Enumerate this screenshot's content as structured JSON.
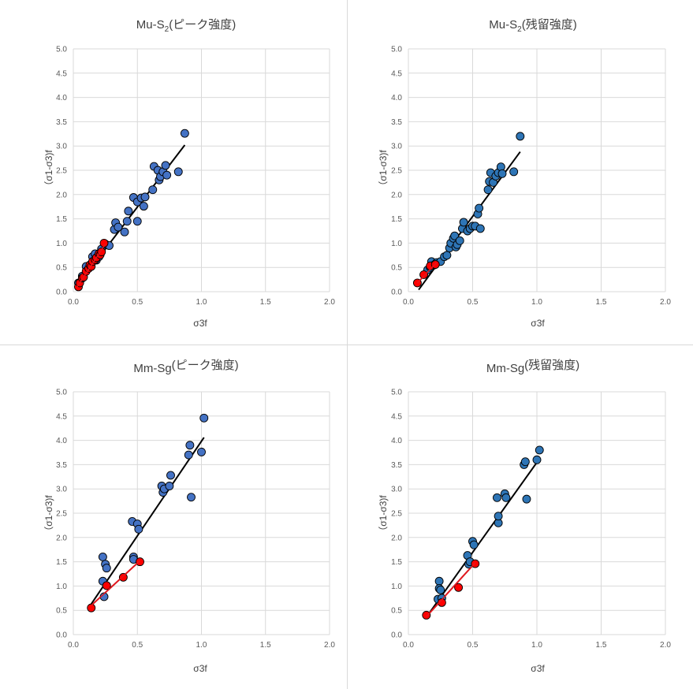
{
  "colors": {
    "primary_points": "#4472c4",
    "residual_points": "#2e75b6",
    "highlight_points": "#ff0000",
    "trend_line": "#000000",
    "highlight_line": "#e0191f",
    "gridline": "#d9d9d9"
  },
  "chart_data": [
    {
      "type": "scatter",
      "title": "Mu-S2(ピーク強度)",
      "title_main": "Mu-S",
      "title_sub": "2",
      "title_tail": "(ピーク強度)",
      "xlabel": "σ3f",
      "ylabel": "（σ1-σ3)f",
      "xlim": [
        0,
        2.0
      ],
      "ylim": [
        0,
        5.0
      ],
      "xticks": [
        "0.0",
        "0.5",
        "1.0",
        "1.5",
        "2.0"
      ],
      "yticks": [
        "0.0",
        "0.5",
        "1.0",
        "1.5",
        "2.0",
        "2.5",
        "3.0",
        "3.5",
        "4.0",
        "4.5",
        "5.0"
      ],
      "grid": true,
      "series": [
        {
          "color": "#4472c4",
          "points": [
            [
              0.04,
              0.18
            ],
            [
              0.07,
              0.32
            ],
            [
              0.1,
              0.52
            ],
            [
              0.13,
              0.55
            ],
            [
              0.15,
              0.72
            ],
            [
              0.17,
              0.78
            ],
            [
              0.18,
              0.65
            ],
            [
              0.2,
              0.72
            ],
            [
              0.22,
              0.88
            ],
            [
              0.25,
              0.98
            ],
            [
              0.28,
              0.95
            ],
            [
              0.32,
              1.28
            ],
            [
              0.33,
              1.42
            ],
            [
              0.35,
              1.33
            ],
            [
              0.4,
              1.23
            ],
            [
              0.42,
              1.45
            ],
            [
              0.43,
              1.66
            ],
            [
              0.47,
              1.94
            ],
            [
              0.5,
              1.45
            ],
            [
              0.5,
              1.85
            ],
            [
              0.53,
              1.93
            ],
            [
              0.55,
              1.76
            ],
            [
              0.56,
              1.95
            ],
            [
              0.62,
              2.1
            ],
            [
              0.63,
              2.58
            ],
            [
              0.66,
              2.5
            ],
            [
              0.67,
              2.3
            ],
            [
              0.68,
              2.37
            ],
            [
              0.7,
              2.47
            ],
            [
              0.72,
              2.6
            ],
            [
              0.73,
              2.4
            ],
            [
              0.82,
              2.47
            ],
            [
              0.87,
              3.26
            ]
          ]
        },
        {
          "color": "#ff0000",
          "points": [
            [
              0.04,
              0.1
            ],
            [
              0.05,
              0.18
            ],
            [
              0.07,
              0.28
            ],
            [
              0.08,
              0.3
            ],
            [
              0.1,
              0.42
            ],
            [
              0.12,
              0.48
            ],
            [
              0.13,
              0.55
            ],
            [
              0.14,
              0.52
            ],
            [
              0.15,
              0.62
            ],
            [
              0.17,
              0.66
            ],
            [
              0.18,
              0.7
            ],
            [
              0.2,
              0.78
            ],
            [
              0.21,
              0.76
            ],
            [
              0.22,
              0.82
            ],
            [
              0.24,
              1.0
            ]
          ]
        }
      ],
      "trendlines": [
        {
          "color": "#000000",
          "from": [
            0.03,
            0.12
          ],
          "to": [
            0.87,
            3.02
          ]
        },
        {
          "color": "#e0191f",
          "from": [
            0.03,
            0.1
          ],
          "to": [
            0.25,
            0.98
          ]
        }
      ]
    },
    {
      "type": "scatter",
      "title": "Mu-S2(残留強度)",
      "title_main": "Mu-S",
      "title_sub": "2",
      "title_tail": "(残留強度)",
      "xlabel": "σ3f",
      "ylabel": "（σ1-σ3)f",
      "xlim": [
        0,
        2.0
      ],
      "ylim": [
        0,
        5.0
      ],
      "xticks": [
        "0.0",
        "0.5",
        "1.0",
        "1.5",
        "2.0"
      ],
      "yticks": [
        "0.0",
        "0.5",
        "1.0",
        "1.5",
        "2.0",
        "2.5",
        "3.0",
        "3.5",
        "4.0",
        "4.5",
        "5.0"
      ],
      "grid": true,
      "series": [
        {
          "color": "#2e75b6",
          "points": [
            [
              0.15,
              0.45
            ],
            [
              0.17,
              0.5
            ],
            [
              0.18,
              0.62
            ],
            [
              0.2,
              0.55
            ],
            [
              0.22,
              0.6
            ],
            [
              0.25,
              0.62
            ],
            [
              0.28,
              0.72
            ],
            [
              0.3,
              0.75
            ],
            [
              0.32,
              0.9
            ],
            [
              0.33,
              1.0
            ],
            [
              0.35,
              1.1
            ],
            [
              0.36,
              1.15
            ],
            [
              0.37,
              0.92
            ],
            [
              0.38,
              0.97
            ],
            [
              0.4,
              1.05
            ],
            [
              0.42,
              1.3
            ],
            [
              0.43,
              1.43
            ],
            [
              0.46,
              1.25
            ],
            [
              0.48,
              1.3
            ],
            [
              0.5,
              1.35
            ],
            [
              0.52,
              1.35
            ],
            [
              0.54,
              1.6
            ],
            [
              0.55,
              1.72
            ],
            [
              0.56,
              1.3
            ],
            [
              0.62,
              2.1
            ],
            [
              0.63,
              2.27
            ],
            [
              0.64,
              2.45
            ],
            [
              0.66,
              2.25
            ],
            [
              0.68,
              2.38
            ],
            [
              0.7,
              2.45
            ],
            [
              0.72,
              2.57
            ],
            [
              0.73,
              2.43
            ],
            [
              0.82,
              2.47
            ],
            [
              0.87,
              3.2
            ]
          ]
        },
        {
          "color": "#ff0000",
          "points": [
            [
              0.07,
              0.18
            ],
            [
              0.12,
              0.35
            ],
            [
              0.17,
              0.53
            ],
            [
              0.21,
              0.56
            ]
          ]
        }
      ],
      "trendlines": [
        {
          "color": "#000000",
          "from": [
            0.08,
            0.04
          ],
          "to": [
            0.87,
            2.88
          ]
        },
        {
          "color": "#e0191f",
          "from": [
            0.07,
            0.18
          ],
          "to": [
            0.22,
            0.6
          ]
        }
      ]
    },
    {
      "type": "scatter",
      "title": "Mm-Sg(ピーク強度)",
      "title_main": "Mm-Sg",
      "title_sub": "",
      "title_tail": "(ピーク強度)",
      "xlabel": "σ3f",
      "ylabel": "（σ1-σ3)f",
      "xlim": [
        0,
        2.0
      ],
      "ylim": [
        0,
        5.0
      ],
      "xticks": [
        "0.0",
        "0.5",
        "1.0",
        "1.5",
        "2.0"
      ],
      "yticks": [
        "0.0",
        "0.5",
        "1.0",
        "1.5",
        "2.0",
        "2.5",
        "3.0",
        "3.5",
        "4.0",
        "4.5",
        "5.0"
      ],
      "grid": true,
      "series": [
        {
          "color": "#4472c4",
          "points": [
            [
              0.23,
              1.6
            ],
            [
              0.23,
              1.1
            ],
            [
              0.24,
              0.78
            ],
            [
              0.25,
              1.45
            ],
            [
              0.26,
              1.37
            ],
            [
              0.46,
              2.33
            ],
            [
              0.47,
              1.6
            ],
            [
              0.47,
              1.55
            ],
            [
              0.5,
              2.28
            ],
            [
              0.51,
              2.17
            ],
            [
              0.69,
              3.06
            ],
            [
              0.7,
              2.93
            ],
            [
              0.71,
              3.0
            ],
            [
              0.75,
              3.06
            ],
            [
              0.76,
              3.28
            ],
            [
              0.9,
              3.7
            ],
            [
              0.91,
              3.9
            ],
            [
              0.92,
              2.83
            ],
            [
              1.0,
              3.76
            ],
            [
              1.02,
              4.46
            ]
          ]
        },
        {
          "color": "#ff0000",
          "points": [
            [
              0.14,
              0.55
            ],
            [
              0.26,
              1.01
            ],
            [
              0.39,
              1.18
            ],
            [
              0.52,
              1.5
            ]
          ]
        }
      ],
      "trendlines": [
        {
          "color": "#000000",
          "from": [
            0.14,
            0.63
          ],
          "to": [
            1.02,
            4.06
          ]
        },
        {
          "color": "#e0191f",
          "from": [
            0.14,
            0.6
          ],
          "to": [
            0.52,
            1.52
          ]
        }
      ]
    },
    {
      "type": "scatter",
      "title": "Mm-Sg(残留強度)",
      "title_main": "Mm-Sg",
      "title_sub": "",
      "title_tail": "(残留強度)",
      "xlabel": "σ3f",
      "ylabel": "（σ1-σ3)f",
      "xlim": [
        0,
        2.0
      ],
      "ylim": [
        0,
        5.0
      ],
      "xticks": [
        "0.0",
        "0.5",
        "1.0",
        "1.5",
        "2.0"
      ],
      "yticks": [
        "0.0",
        "0.5",
        "1.0",
        "1.5",
        "2.0",
        "2.5",
        "3.0",
        "3.5",
        "4.0",
        "4.5",
        "5.0"
      ],
      "grid": true,
      "series": [
        {
          "color": "#2e75b6",
          "points": [
            [
              0.23,
              0.73
            ],
            [
              0.24,
              1.1
            ],
            [
              0.24,
              0.95
            ],
            [
              0.25,
              0.92
            ],
            [
              0.26,
              0.75
            ],
            [
              0.46,
              1.63
            ],
            [
              0.47,
              1.45
            ],
            [
              0.48,
              1.5
            ],
            [
              0.5,
              1.92
            ],
            [
              0.51,
              1.85
            ],
            [
              0.69,
              2.82
            ],
            [
              0.7,
              2.3
            ],
            [
              0.7,
              2.44
            ],
            [
              0.75,
              2.9
            ],
            [
              0.76,
              2.82
            ],
            [
              0.9,
              3.5
            ],
            [
              0.91,
              3.56
            ],
            [
              0.92,
              2.79
            ],
            [
              1.0,
              3.6
            ],
            [
              1.02,
              3.8
            ]
          ]
        },
        {
          "color": "#ff0000",
          "points": [
            [
              0.14,
              0.4
            ],
            [
              0.26,
              0.66
            ],
            [
              0.39,
              0.97
            ],
            [
              0.52,
              1.46
            ]
          ]
        }
      ],
      "trendlines": [
        {
          "color": "#000000",
          "from": [
            0.14,
            0.36
          ],
          "to": [
            1.02,
            3.62
          ]
        },
        {
          "color": "#e0191f",
          "from": [
            0.14,
            0.37
          ],
          "to": [
            0.52,
            1.48
          ]
        }
      ]
    }
  ]
}
